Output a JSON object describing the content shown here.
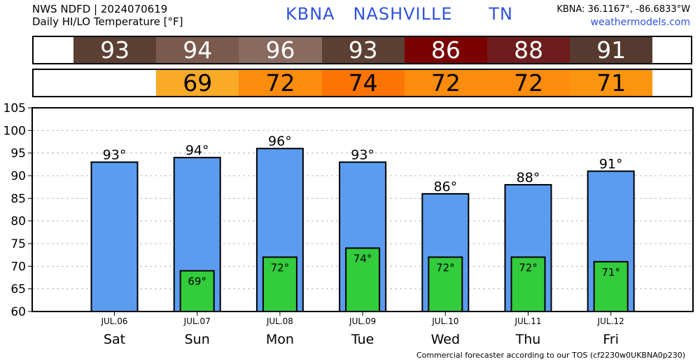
{
  "header": {
    "line1": "NWS NDFD | 2024070619",
    "line2": "Daily HI/LO Temperature [°F]",
    "station_title": "KBNA   NASHVILLE      TN",
    "coords": "KBNA: 36.1167°, -86.6833°W",
    "site": "weathermodels.com"
  },
  "hi_strip": [
    {
      "text": "93",
      "color": "#5c4033"
    },
    {
      "text": "94",
      "color": "#7a5a4c"
    },
    {
      "text": "96",
      "color": "#886a5f"
    },
    {
      "text": "93",
      "color": "#5c4033"
    },
    {
      "text": "86",
      "color": "#7a0202"
    },
    {
      "text": "88",
      "color": "#6f1c1c"
    },
    {
      "text": "91",
      "color": "#56392f"
    }
  ],
  "lo_strip": [
    {
      "text": "",
      "color": "#ffffff"
    },
    {
      "text": "69",
      "color": "#f9aa27"
    },
    {
      "text": "72",
      "color": "#fb8c0e"
    },
    {
      "text": "74",
      "color": "#fb7405"
    },
    {
      "text": "72",
      "color": "#fb8c0e"
    },
    {
      "text": "72",
      "color": "#fb8c0e"
    },
    {
      "text": "71",
      "color": "#fb950f"
    }
  ],
  "chart_data": {
    "type": "bar",
    "categories": [
      "Sat",
      "Sun",
      "Mon",
      "Tue",
      "Wed",
      "Thu",
      "Fri"
    ],
    "dates": [
      "JUL.06",
      "JUL.07",
      "JUL.08",
      "JUL.09",
      "JUL.10",
      "JUL.11",
      "JUL.12"
    ],
    "series": [
      {
        "values": [
          93,
          94,
          96,
          93,
          86,
          88,
          91
        ],
        "labels": [
          "93°",
          "94°",
          "96°",
          "93°",
          "86°",
          "88°",
          "91°"
        ],
        "color": "#5b9cf0"
      },
      {
        "values": [
          null,
          69,
          72,
          74,
          72,
          72,
          71
        ],
        "labels": [
          "",
          "69°",
          "72°",
          "74°",
          "72°",
          "72°",
          "71°"
        ],
        "color": "#33cc3c"
      }
    ],
    "ylim": [
      60,
      105
    ],
    "yticks": [
      60,
      65,
      70,
      75,
      80,
      85,
      90,
      95,
      100,
      105
    ],
    "grid": true
  },
  "footer": "Commercial forecaster according to our TOS (cf2230w0UKBNA0p230)"
}
